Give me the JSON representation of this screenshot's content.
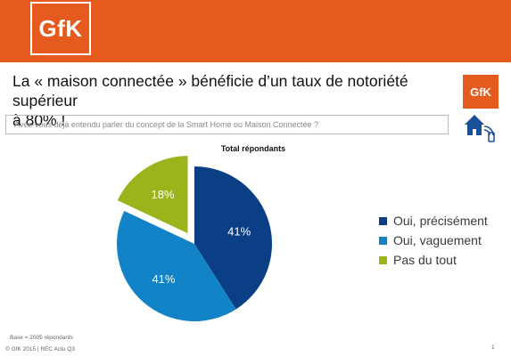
{
  "header": {
    "logo_text": "GfK"
  },
  "slide": {
    "title_line1": "La « maison connectée » bénéficie d’un taux de notoriété supérieur",
    "title_line2": "à 80% !",
    "question": "Avez-vous déjà entendu parler du concept de la Smart Home ou Maison Connectée ?",
    "small_logo_text": "GfK"
  },
  "chart_data": {
    "type": "pie",
    "title": "Total répondants",
    "slices": [
      {
        "label": "Oui, précisément",
        "value": 41,
        "display": "41%",
        "color": "#0a3f86",
        "exploded": false
      },
      {
        "label": "Oui, vaguement",
        "value": 41,
        "display": "41%",
        "color": "#1283c7",
        "exploded": false
      },
      {
        "label": "Pas du tout",
        "value": 18,
        "display": "18%",
        "color": "#9ab51c",
        "exploded": true
      }
    ],
    "legend_position": "right"
  },
  "footer": {
    "base_note": "Base = 2005 répondants",
    "copyright": "© GfK 2015 | REC Actu Q3",
    "page_number": "1"
  },
  "colors": {
    "brand_orange": "#e55a1d"
  }
}
